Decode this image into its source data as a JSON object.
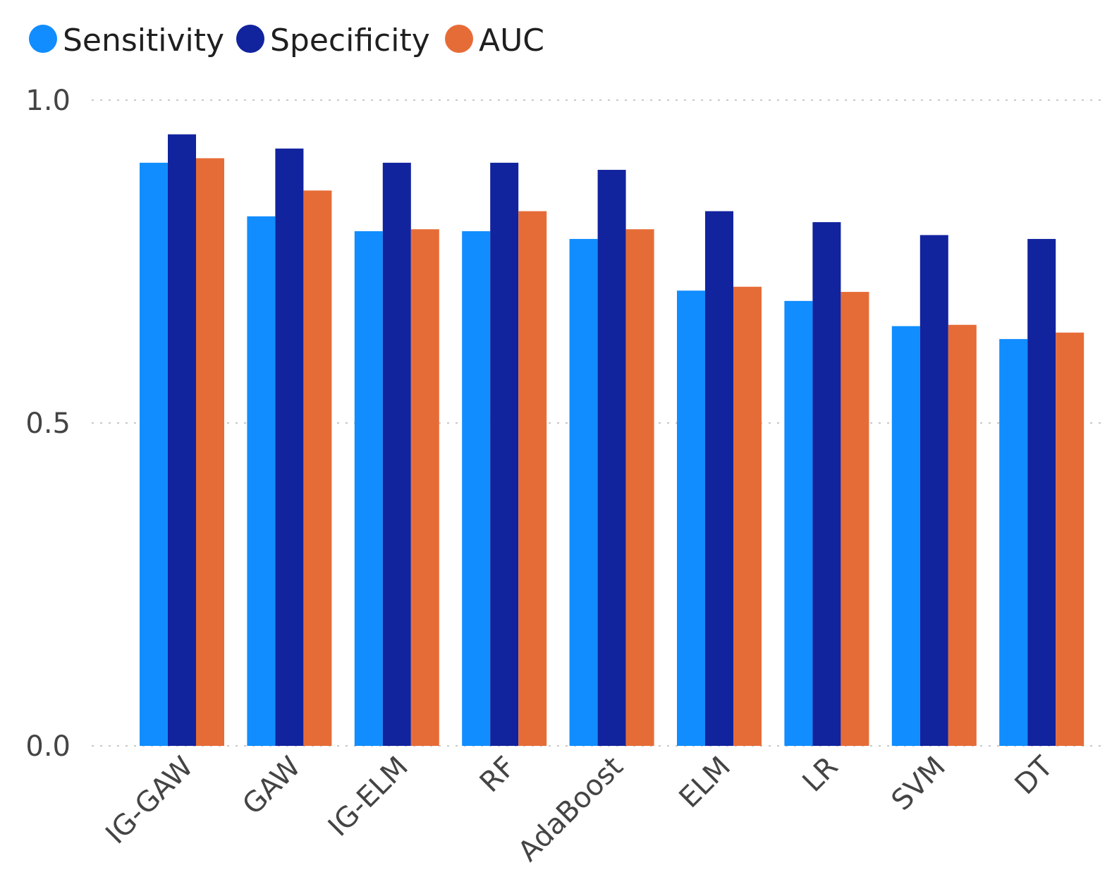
{
  "chart_data": {
    "type": "bar",
    "title": "",
    "xlabel": "",
    "ylabel": "",
    "ylim": [
      0,
      1.0
    ],
    "yticks": [
      "0.0",
      "0.5",
      "1.0"
    ],
    "yticks_values": [
      0,
      0.5,
      1.0
    ],
    "grid": true,
    "legend_position": "top-left",
    "categories": [
      "IG-GAW",
      "GAW",
      "IG-ELM",
      "RF",
      "AdaBoost",
      "ELM",
      "LR",
      "SVM",
      "DT"
    ],
    "series": [
      {
        "name": "Sensitivity",
        "color": "#118DFF",
        "values": [
          0.903,
          0.82,
          0.797,
          0.797,
          0.785,
          0.705,
          0.689,
          0.65,
          0.63
        ]
      },
      {
        "name": "Specificity",
        "color": "#12239E",
        "values": [
          0.947,
          0.925,
          0.903,
          0.903,
          0.892,
          0.828,
          0.811,
          0.791,
          0.785
        ]
      },
      {
        "name": "AUC",
        "color": "#E66C37",
        "values": [
          0.91,
          0.86,
          0.8,
          0.828,
          0.8,
          0.711,
          0.703,
          0.652,
          0.64
        ]
      }
    ]
  }
}
